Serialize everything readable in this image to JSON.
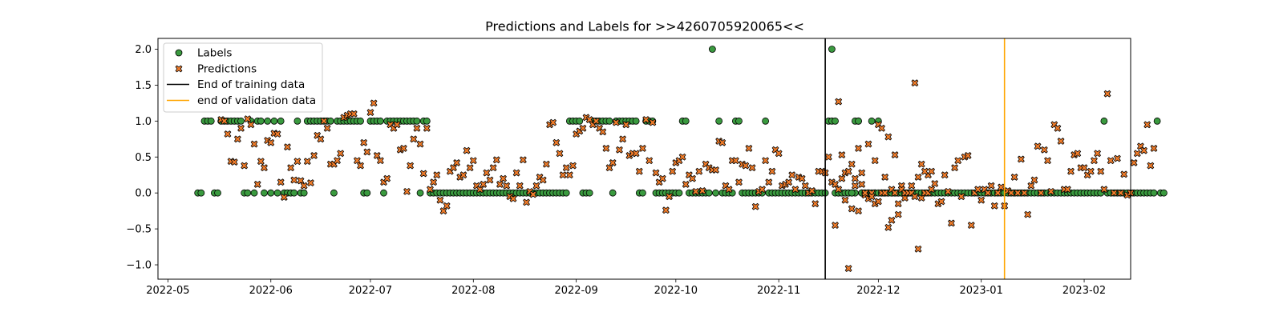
{
  "chart_data": {
    "type": "scatter",
    "title": "Predictions and Labels for >>4260705920065<<",
    "xlabel": "",
    "ylabel": "",
    "x_domain": [
      "2022-04-28",
      "2023-02-15"
    ],
    "ylim": [
      -1.2,
      2.15
    ],
    "x_ticks": [
      "2022-05-01",
      "2022-06-01",
      "2022-07-01",
      "2022-08-01",
      "2022-09-01",
      "2022-10-01",
      "2022-11-01",
      "2022-12-01",
      "2023-01-01",
      "2023-02-01"
    ],
    "x_tick_labels": [
      "2022-05",
      "2022-06",
      "2022-07",
      "2022-08",
      "2022-09",
      "2022-10",
      "2022-11",
      "2022-12",
      "2023-01",
      "2023-02"
    ],
    "y_ticks": [
      2.0,
      1.5,
      1.0,
      0.5,
      0.0,
      -0.5,
      -1.0
    ],
    "y_tick_labels": [
      "2.0",
      "1.5",
      "1.0",
      "0.5",
      "0.0",
      "−0.5",
      "−1.0"
    ],
    "grid": false,
    "legend_position": "top-left",
    "colors": {
      "labels": "#3a9a3f",
      "predictions": "#f07c2a",
      "training_line": "#000000",
      "validation_line": "#ffa500"
    },
    "series": [
      {
        "name": "Labels",
        "marker": "circle",
        "segments": [
          {
            "start": "2022-05-10",
            "values": [
              0,
              0,
              1,
              1,
              1,
              0,
              0,
              1,
              1,
              1,
              1,
              1,
              1,
              1,
              0,
              0,
              1,
              0,
              1,
              1,
              0,
              1,
              0,
              1,
              0,
              1,
              0,
              0,
              0,
              0,
              1,
              0,
              0,
              1,
              1,
              1,
              1,
              1,
              1,
              1,
              1,
              0,
              1,
              1,
              1,
              1,
              1,
              1,
              1,
              1,
              0,
              0,
              1,
              1,
              1,
              1,
              0,
              1,
              1,
              1,
              1,
              1,
              1,
              1,
              1,
              1,
              1,
              0,
              1,
              1,
              0,
              0,
              0,
              0,
              0,
              0,
              0,
              0,
              0,
              0,
              0,
              0,
              0,
              0,
              0,
              0,
              0,
              0,
              0,
              0,
              0,
              0,
              0,
              0,
              0,
              0,
              0,
              0,
              0,
              0,
              0,
              0,
              0,
              0,
              0,
              0,
              0,
              0,
              0,
              0,
              0,
              0,
              1,
              1,
              1,
              1,
              0,
              0,
              0,
              1,
              1,
              1,
              1,
              1,
              1,
              0,
              1,
              1,
              1,
              1,
              1,
              1,
              1,
              0,
              0,
              1,
              1,
              1,
              0,
              0,
              0,
              0,
              0,
              0,
              0,
              0,
              1,
              1,
              0,
              0,
              0,
              0,
              0,
              0,
              0,
              2,
              0,
              1,
              0,
              0,
              0,
              0,
              1,
              1,
              0,
              0,
              0,
              0,
              0,
              0,
              0,
              1,
              0,
              0,
              0,
              0,
              0,
              0,
              0,
              0,
              0,
              0,
              0,
              0,
              0,
              0,
              0,
              0,
              0,
              0,
              1,
              1,
              0,
              0,
              0,
              0,
              0,
              0,
              0,
              1,
              0,
              0,
              0,
              1,
              0,
              1,
              0,
              0,
              0,
              0,
              0,
              0,
              0,
              0,
              0,
              0,
              0
            ]
          },
          {
            "start": "2022-11-17",
            "values": [
              2,
              1,
              0,
              0,
              0,
              0,
              0,
              1,
              1,
              0,
              0,
              0,
              0,
              0,
              0,
              0,
              0,
              0,
              0,
              0,
              0,
              0,
              0,
              0,
              0,
              0,
              0,
              0,
              0,
              0,
              0,
              0,
              0,
              0,
              0,
              0,
              0,
              0,
              0,
              0,
              0,
              0,
              0,
              0,
              0,
              0,
              0,
              0,
              0,
              0,
              0,
              0,
              0,
              0,
              0,
              0,
              0,
              0,
              0,
              0,
              0,
              0,
              0,
              0,
              0,
              0,
              0,
              0,
              0,
              0,
              0,
              0,
              0,
              0,
              0,
              0,
              0,
              0,
              0,
              0,
              0,
              0,
              1,
              0,
              0,
              0,
              0,
              0,
              0,
              0,
              0,
              0,
              0,
              0,
              0,
              0,
              0,
              0,
              1,
              0,
              0
            ]
          }
        ]
      },
      {
        "name": "Predictions",
        "marker": "x",
        "segments": [
          {
            "start": "2022-05-17",
            "values": [
              1.02,
              1.0,
              0.82,
              0.44,
              0.43,
              0.75,
              0.9,
              0.38,
              1.03,
              0.95,
              0.68,
              0.12,
              0.44,
              0.35,
              0.73,
              0.7,
              0.83,
              0.82,
              0.15,
              -0.06,
              0.64,
              0.35,
              0.18,
              0.44,
              0.17,
              0.1,
              0.44,
              0.14,
              0.52,
              0.8,
              0.75,
              1.0,
              0.9,
              0.4,
              0.4,
              0.45,
              0.55,
              1.05,
              1.08,
              1.1,
              1.1,
              0.45,
              0.38,
              0.7,
              0.57,
              1.12,
              1.25,
              0.52,
              0.45,
              0.15,
              0.2,
              0.95,
              0.9,
              0.95,
              0.6,
              0.62,
              0.02,
              0.38,
              0.75,
              0.9,
              0.68,
              0.27,
              0.9,
              0.05,
              0.15,
              0.25,
              -0.1,
              -0.25,
              -0.18,
              0.3,
              0.35,
              0.42,
              0.22,
              0.25,
              0.59,
              0.35,
              0.45,
              0.1,
              0.05,
              0.12,
              0.28,
              0.18,
              0.35,
              0.46,
              0.12,
              0.2,
              0.1,
              -0.05,
              -0.08,
              0.28,
              0.1,
              0.46,
              -0.13,
              0.02,
              -0.02,
              0.1,
              0.22,
              0.18,
              0.4,
              0.95,
              0.98,
              0.7,
              0.55,
              0.25,
              0.35,
              0.25,
              0.38,
              0.82,
              0.86,
              0.9,
              1.05,
              1.02,
              0.95,
              1.0,
              0.9,
              0.85,
              0.62,
              0.35,
              0.42,
              0.98,
              0.6,
              0.75,
              0.95,
              0.52,
              0.55,
              0.55,
              0.3,
              0.62,
              1.02,
              0.45,
              0.98,
              0.28,
              0.15,
              0.2,
              -0.24,
              -0.05,
              0.3,
              0.42,
              0.45,
              0.5,
              0.12,
              0.25,
              0.2,
              0.02,
              0.3,
              0.03,
              0.4,
              0.35,
              0.32,
              0.32,
              0.72,
              0.7,
              0.1,
              0.05,
              0.45,
              0.45,
              0.15,
              0.4,
              0.38,
              0.62,
              0.35,
              -0.19,
              0.02,
              0.05,
              0.45,
              0.15,
              0.3,
              0.6,
              0.55,
              0.1,
              0.12,
              0.15,
              0.25,
              0.05,
              0.22,
              0.2,
              0.1,
              0.0,
              0.03,
              -0.15,
              0.3,
              0.3,
              0.28,
              0.5,
              0.15,
              0.12,
              0.05,
              0.2,
              0.28,
              0.3,
              0.4,
              0.2,
              0.62,
              0.12,
              -0.03,
              -0.08,
              0.0,
              0.45,
              0.95,
              0.9,
              0.22,
              0.78,
              0.05,
              0.0,
              -0.15,
              0.1,
              -0.07,
              0.0,
              0.1,
              1.53,
              -0.78,
              -0.07,
              0.0,
              0.25,
              0.3
            ]
          },
          {
            "start": "2022-11-18",
            "values": [
              -0.45,
              1.27,
              0.53,
              -0.1,
              -1.05,
              -0.22,
              0.1,
              -0.25,
              0.28,
              0.0,
              0.68,
              -0.05,
              -0.15,
              -0.12,
              0.0,
              0.0,
              -0.48,
              -0.38,
              0.53,
              -0.3,
              0.05,
              0.0,
              0.0,
              0.0,
              -0.05,
              0.22,
              0.4,
              0.3,
              0.0,
              0.05,
              0.13,
              -0.15,
              -0.12,
              0.25,
              0.02,
              -0.42,
              0.35,
              0.45,
              -0.05,
              0.5,
              0.52,
              -0.45,
              0.0,
              0.05,
              -0.1,
              0.05,
              0.0,
              0.1,
              -0.18,
              0.0,
              0.08,
              -0.18,
              0.03,
              0.0,
              0.22,
              0.0,
              0.47,
              0.0,
              -0.3,
              0.1,
              0.18,
              0.65,
              0.0,
              0.6,
              0.45,
              0.02,
              0.95,
              0.9,
              0.72,
              0.05,
              0.05,
              0.3,
              0.53,
              0.55,
              0.35,
              0.35,
              0.25,
              0.3,
              0.45,
              0.55,
              0.3,
              0.05,
              1.38,
              0.45,
              0.0,
              0.48,
              0.0,
              0.26,
              -0.03,
              0.0,
              0.42,
              0.55,
              0.65,
              0.59,
              0.95,
              0.38,
              0.62
            ]
          }
        ]
      }
    ],
    "vlines": [
      {
        "name": "End of training data",
        "x": "2022-11-15",
        "color": "#000000"
      },
      {
        "name": "end of validation data",
        "x": "2023-01-08",
        "color": "#ffa500"
      }
    ],
    "legend": [
      "Labels",
      "Predictions",
      "End of training data",
      "end of validation data"
    ]
  }
}
